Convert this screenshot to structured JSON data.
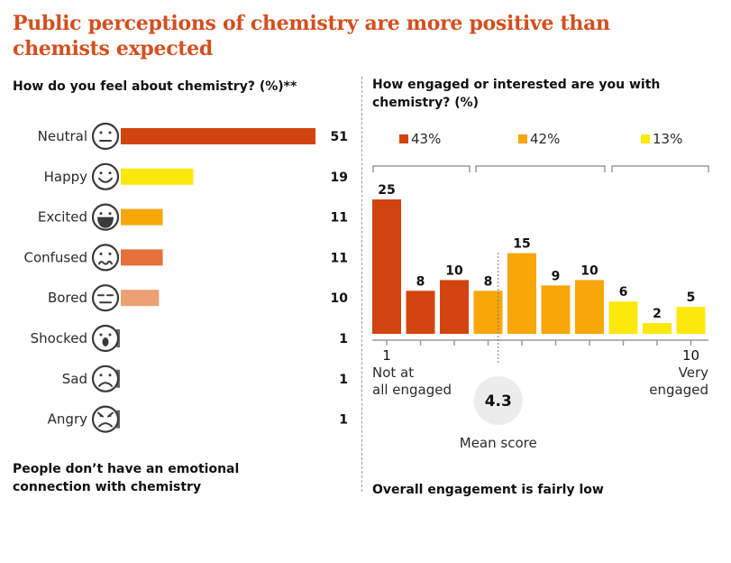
{
  "title": "Public perceptions of chemistry are more positive than chemists expected",
  "colors": {
    "title": "#d2501f",
    "dark_orange": "#d2440f",
    "orange": "#f7a70a",
    "yellow": "#fce80a",
    "mid_orange": "#e4703a",
    "light_orange": "#eda074",
    "mean_circle": "#ececec"
  },
  "chart_data": [
    {
      "type": "bar",
      "orientation": "horizontal",
      "title": "How do you feel about chemistry? (%)**",
      "categories": [
        "Neutral",
        "Happy",
        "Excited",
        "Confused",
        "Bored",
        "Shocked",
        "Sad",
        "Angry"
      ],
      "icons": [
        "neutral-face-icon",
        "happy-face-icon",
        "excited-face-icon",
        "confused-face-icon",
        "bored-face-icon",
        "shocked-face-icon",
        "sad-face-icon",
        "angry-face-icon"
      ],
      "values": [
        51,
        19,
        11,
        11,
        10,
        1,
        1,
        1
      ],
      "bar_colors": [
        "#d2440f",
        "#fce80a",
        "#f7a70a",
        "#e4703a",
        "#eda074",
        "#444444",
        "#444444",
        "#444444"
      ],
      "xlim": [
        0,
        51
      ],
      "caption": "People don’t have an emotional connection with chemistry"
    },
    {
      "type": "bar",
      "orientation": "vertical",
      "title": "How engaged or interested are you with chemistry? (%)",
      "categories": [
        "1",
        "2",
        "3",
        "4",
        "5",
        "6",
        "7",
        "8",
        "9",
        "10"
      ],
      "values": [
        25,
        8,
        10,
        8,
        15,
        9,
        10,
        6,
        2,
        5
      ],
      "group_of_bar": [
        0,
        0,
        0,
        1,
        1,
        1,
        1,
        2,
        2,
        2
      ],
      "groups": [
        {
          "label": "43%",
          "color": "#d2440f"
        },
        {
          "label": "42%",
          "color": "#f7a70a"
        },
        {
          "label": "13%",
          "color": "#fce80a"
        }
      ],
      "ylim": [
        0,
        25
      ],
      "x_tick_labels": {
        "first": "1",
        "last": "10"
      },
      "x_end_labels": {
        "left": [
          "Not at",
          "all engaged"
        ],
        "right": [
          "Very",
          "engaged"
        ]
      },
      "mean": {
        "value": "4.3",
        "label": "Mean score",
        "position": 4.3
      },
      "caption": "Overall engagement is fairly low"
    }
  ]
}
